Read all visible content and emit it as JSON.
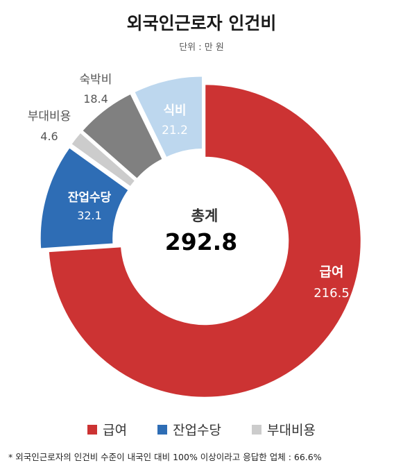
{
  "chart_data": {
    "type": "pie",
    "title": "외국인근로자 인건비",
    "subtitle": "단위 : 만 원",
    "center_label": "총계",
    "center_value": "292.8",
    "slices": [
      {
        "name": "급여",
        "value": 216.5,
        "value_label": "216.5",
        "color": "#cc3333",
        "label_color": "#ffffff",
        "exploded": false
      },
      {
        "name": "잔업수당",
        "value": 32.1,
        "value_label": "32.1",
        "color": "#2e6db5",
        "label_color": "#ffffff",
        "exploded": true
      },
      {
        "name": "부대비용",
        "value": 4.6,
        "value_label": "4.6",
        "color": "#cccccc",
        "label_color": "#555555",
        "exploded": true
      },
      {
        "name": "숙박비",
        "value": 18.4,
        "value_label": "18.4",
        "color": "#808080",
        "label_color": "#555555",
        "exploded": true
      },
      {
        "name": "식비",
        "value": 21.2,
        "value_label": "21.2",
        "color": "#bdd7ee",
        "label_color": "#ffffff",
        "exploded": true
      }
    ],
    "legend": {
      "placement": "bottom",
      "entries": [
        {
          "name": "급여",
          "color": "#cc3333"
        },
        {
          "name": "잔업수당",
          "color": "#2e6db5"
        },
        {
          "name": "부대비용",
          "color": "#cccccc"
        }
      ]
    },
    "footnote": "* 외국인근로자의 인건비 수준이 내국인 대비 100% 이상이라고 응답한 업체 : 66.6%"
  }
}
